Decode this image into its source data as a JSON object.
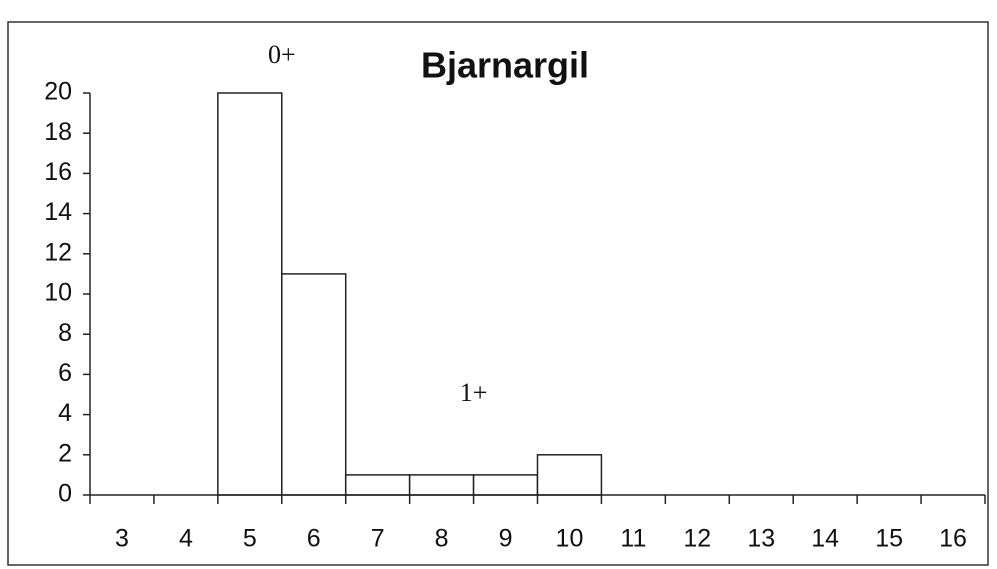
{
  "chart_data": {
    "type": "bar",
    "title": "Bjarnargil",
    "annotations": [
      "0+",
      "1+"
    ],
    "categories": [
      "3",
      "4",
      "5",
      "6",
      "7",
      "8",
      "9",
      "10",
      "11",
      "12",
      "13",
      "14",
      "15",
      "16"
    ],
    "values": [
      0,
      0,
      20,
      11,
      1,
      1,
      1,
      2,
      0,
      0,
      0,
      0,
      0,
      0
    ],
    "color": "#ffffff",
    "ylim": [
      0,
      20
    ],
    "yticks": [
      0,
      2,
      4,
      6,
      8,
      10,
      12,
      14,
      16,
      18,
      20
    ],
    "grid": false
  }
}
